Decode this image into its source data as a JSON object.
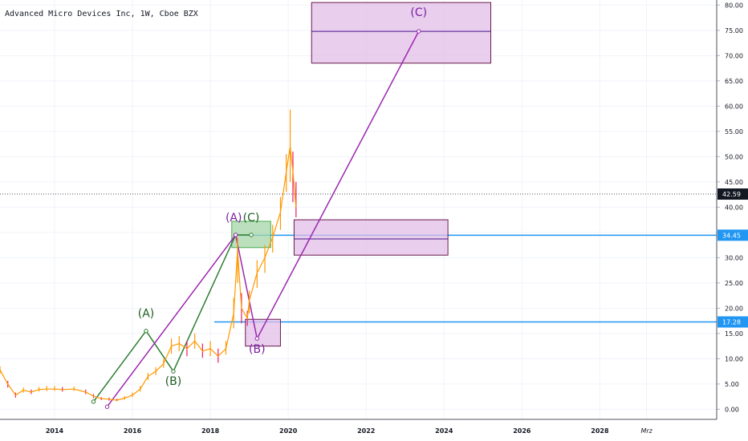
{
  "header": {
    "title": "Advanced Micro Devices Inc, 1W, Cboe BZX"
  },
  "colors": {
    "up": "#ff9800",
    "down": "#e91e63",
    "purple_wave": "#9c27b0",
    "green_wave": "#2e7d32",
    "hline": "#2196f3",
    "purple_box": "#e1bee7",
    "green_box": "#a5d6a7",
    "grid": "#f0f3fa",
    "axis_text": "#131722",
    "current_price_bg": "#131722"
  },
  "chart_data": {
    "type": "line",
    "title": "Advanced Micro Devices Inc, 1W, Cboe BZX",
    "xlabel": "",
    "ylabel": "",
    "xlim": [
      2012.6,
      2031.0
    ],
    "ylim": [
      -2.0,
      81.0
    ],
    "x_ticks": [
      "2014",
      "2016",
      "2018",
      "2020",
      "2022",
      "2024",
      "2026",
      "2028",
      "Mrz"
    ],
    "y_ticks": [
      "0.00",
      "5.00",
      "10.00",
      "15.00",
      "20.00",
      "25.00",
      "30.00",
      "35.00",
      "40.00",
      "45.00",
      "50.00",
      "55.00",
      "60.00",
      "65.00",
      "70.00",
      "75.00",
      "80.00"
    ],
    "price_series": {
      "name": "AMD",
      "x": [
        2012.6,
        2012.8,
        2013.0,
        2013.2,
        2013.4,
        2013.6,
        2013.8,
        2014.0,
        2014.2,
        2014.5,
        2014.8,
        2015.0,
        2015.2,
        2015.4,
        2015.6,
        2015.8,
        2016.0,
        2016.2,
        2016.4,
        2016.6,
        2016.8,
        2017.0,
        2017.2,
        2017.4,
        2017.6,
        2017.8,
        2018.0,
        2018.2,
        2018.4,
        2018.6,
        2018.7,
        2018.8,
        2018.95,
        2019.0,
        2019.2,
        2019.4,
        2019.6,
        2019.8,
        2019.95,
        2020.05,
        2020.12,
        2020.2
      ],
      "values": [
        7.8,
        5.0,
        2.8,
        3.8,
        3.4,
        3.9,
        4.0,
        4.0,
        3.9,
        4.0,
        3.4,
        2.6,
        2.1,
        2.0,
        1.8,
        2.2,
        2.8,
        4.0,
        6.5,
        7.5,
        9.0,
        12.5,
        13.0,
        12.0,
        13.5,
        11.5,
        12.0,
        10.5,
        12.0,
        19.0,
        31.5,
        20.0,
        18.0,
        21.5,
        27.0,
        30.0,
        34.0,
        39.0,
        47.0,
        52.0,
        47.0,
        40.0
      ]
    },
    "price_range": {
      "name": "AMD weekly range",
      "x": [
        2012.6,
        2012.8,
        2013.0,
        2013.2,
        2013.4,
        2013.6,
        2013.8,
        2014.0,
        2014.2,
        2014.5,
        2014.8,
        2015.0,
        2015.2,
        2015.4,
        2015.6,
        2015.8,
        2016.0,
        2016.2,
        2016.4,
        2016.6,
        2016.8,
        2017.0,
        2017.2,
        2017.4,
        2017.6,
        2017.8,
        2018.0,
        2018.2,
        2018.4,
        2018.6,
        2018.7,
        2018.8,
        2018.95,
        2019.0,
        2019.2,
        2019.4,
        2019.6,
        2019.8,
        2019.95,
        2020.05,
        2020.12,
        2020.2
      ],
      "low": [
        7.0,
        4.3,
        2.3,
        3.3,
        3.0,
        3.5,
        3.6,
        3.6,
        3.5,
        3.6,
        3.0,
        2.2,
        1.8,
        1.7,
        1.6,
        1.9,
        2.4,
        3.5,
        5.8,
        6.8,
        8.2,
        11.0,
        11.5,
        10.5,
        12.0,
        10.2,
        10.5,
        9.2,
        10.8,
        16.0,
        25.0,
        17.0,
        16.5,
        19.0,
        24.0,
        27.0,
        31.0,
        35.5,
        43.0,
        45.0,
        41.0,
        38.0
      ],
      "high": [
        8.5,
        5.6,
        3.3,
        4.3,
        3.9,
        4.4,
        4.6,
        4.6,
        4.4,
        4.5,
        3.9,
        3.0,
        2.4,
        2.3,
        2.1,
        2.6,
        3.3,
        4.6,
        7.2,
        8.3,
        9.9,
        14.0,
        14.5,
        13.5,
        15.0,
        13.0,
        13.5,
        12.0,
        13.5,
        22.0,
        34.0,
        23.0,
        19.5,
        23.5,
        29.5,
        32.5,
        36.5,
        42.0,
        50.5,
        59.3,
        51.0,
        45.0
      ]
    },
    "horizontal_lines": [
      {
        "value": 34.45,
        "label": "34.45",
        "x_start": 2018.7
      },
      {
        "value": 17.28,
        "label": "17.28",
        "x_start": 2018.1
      }
    ],
    "current_price": {
      "value": 42.59,
      "label": "42.59"
    },
    "boxes": [
      {
        "kind": "purple",
        "x0": 2020.6,
        "x1": 2025.2,
        "y0": 68.5,
        "y1": 80.5,
        "mid": 74.8
      },
      {
        "kind": "purple",
        "x0": 2020.15,
        "x1": 2024.1,
        "y0": 30.5,
        "y1": 37.5,
        "mid": 33.7
      },
      {
        "kind": "purple",
        "x0": 2018.9,
        "x1": 2019.8,
        "y0": 12.5,
        "y1": 17.8,
        "mid": null
      },
      {
        "kind": "green",
        "x0": 2018.55,
        "x1": 2019.55,
        "y0": 32.0,
        "y1": 37.2,
        "mid": null
      }
    ],
    "wave_paths": [
      {
        "kind": "green",
        "x": [
          2015.0,
          2016.35,
          2017.05,
          2018.65,
          2019.05
        ],
        "y": [
          1.5,
          15.5,
          7.5,
          34.5,
          34.5
        ]
      },
      {
        "kind": "purple",
        "x": [
          2015.35,
          2018.65,
          2019.2,
          2023.35
        ],
        "y": [
          0.5,
          34.5,
          14.0,
          74.8
        ]
      }
    ],
    "wave_labels": [
      {
        "text": "(A)",
        "x": 2016.35,
        "y": 18.2,
        "kind": "green"
      },
      {
        "text": "(B)",
        "x": 2017.05,
        "y": 4.8,
        "kind": "green"
      },
      {
        "text": "(A)",
        "x": 2018.6,
        "y": 37.2,
        "kind": "purple"
      },
      {
        "text": "(C)",
        "x": 2019.05,
        "y": 37.2,
        "kind": "green"
      },
      {
        "text": "(B)",
        "x": 2019.2,
        "y": 11.2,
        "kind": "purple"
      },
      {
        "text": "(C)",
        "x": 2023.35,
        "y": 77.8,
        "kind": "purple"
      }
    ]
  }
}
